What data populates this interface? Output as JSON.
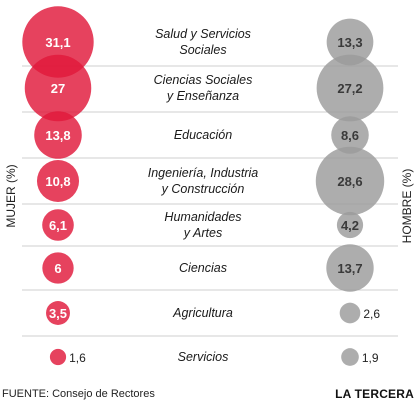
{
  "axis_left": "MUJER (%)",
  "axis_right": "HOMBRE (%)",
  "footer": {
    "source": "FUENTE: Consejo de Rectores",
    "brand": "LA TERCERA"
  },
  "colors": {
    "mujer": "#e0183a",
    "hombre": "#9b9b9b",
    "divider": "#cfcfcf"
  },
  "chart_data": {
    "type": "bubble",
    "categories": [
      [
        "Salud y Servicios",
        "Sociales"
      ],
      [
        "Ciencias Sociales",
        "y Enseñanza"
      ],
      [
        "Educación"
      ],
      [
        "Ingeniería, Industria",
        "y Construcción"
      ],
      [
        "Humanidades",
        "y Artes"
      ],
      [
        "Ciencias"
      ],
      [
        "Agricultura"
      ],
      [
        "Servicios"
      ]
    ],
    "series": [
      {
        "name": "MUJER (%)",
        "values": [
          "31,1",
          "27",
          "13,8",
          "10,8",
          "6,1",
          "6",
          "3,5",
          "1,6"
        ]
      },
      {
        "name": "HOMBRE (%)",
        "values": [
          "13,3",
          "27,2",
          "8,6",
          "28,6",
          "4,2",
          "13,7",
          "2,6",
          "1,9"
        ]
      }
    ]
  }
}
